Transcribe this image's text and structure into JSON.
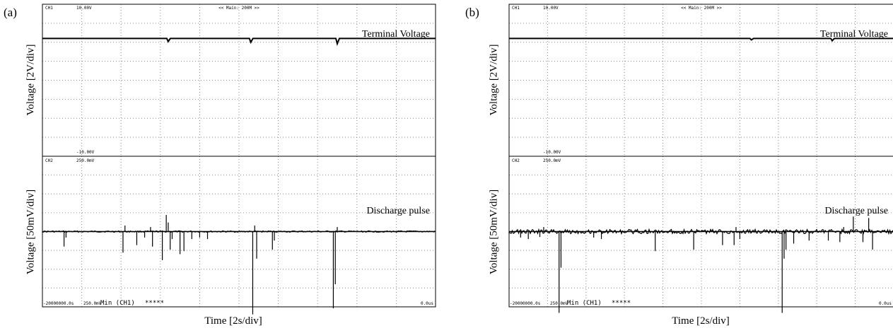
{
  "colors": {
    "frame": "#000000",
    "grid": "#8a8a8a",
    "trace": "#000000",
    "background": "#ffffff"
  },
  "chart_data": [
    {
      "panel_label": "(a)",
      "type": "line",
      "xlabel": "Time [2s/div]",
      "scope": {
        "top_label": "<< Main: 200M >>",
        "bottom_left": "-20000000.0s",
        "bottom_scale": "250.0mV",
        "mode": "Min (CH1)",
        "stars": "*****",
        "bottom_right": "0.0us"
      },
      "channels": [
        {
          "name": "CH1",
          "scale_top": "10.00V",
          "scale_bottom": "-10.00V",
          "ylabel": "Voltage [2V/div]",
          "annotation": "Terminal Voltage",
          "ylim": [
            -10,
            10
          ],
          "baseline": 5.5,
          "events": [
            [
              3.2,
              -0.4
            ],
            [
              5.3,
              -0.5
            ],
            [
              7.5,
              -0.7
            ]
          ]
        },
        {
          "name": "CH2",
          "scale_top": "250.0mV",
          "ylabel": "Voltage [50mV/div]",
          "annotation": "Discharge pulse",
          "ylim": [
            -250,
            250
          ],
          "baseline": 0,
          "noise": "low",
          "events": [
            [
              0.55,
              -50
            ],
            [
              0.6,
              -20
            ],
            [
              2.05,
              -70
            ],
            [
              2.1,
              20
            ],
            [
              2.4,
              -45
            ],
            [
              2.6,
              -20
            ],
            [
              2.8,
              -50
            ],
            [
              2.75,
              15
            ],
            [
              3.05,
              -95
            ],
            [
              3.15,
              55
            ],
            [
              3.2,
              30
            ],
            [
              3.25,
              -60
            ],
            [
              3.3,
              -25
            ],
            [
              3.5,
              -75
            ],
            [
              3.6,
              -65
            ],
            [
              3.8,
              -25
            ],
            [
              4.0,
              -20
            ],
            [
              4.2,
              -25
            ],
            [
              5.35,
              -275
            ],
            [
              5.4,
              20
            ],
            [
              5.45,
              -90
            ],
            [
              5.85,
              -60
            ],
            [
              5.9,
              -30
            ],
            [
              7.4,
              -255
            ],
            [
              7.45,
              -175
            ],
            [
              7.5,
              15
            ]
          ]
        }
      ]
    },
    {
      "panel_label": "(b)",
      "type": "line",
      "xlabel": "Time [2s/div]",
      "scope": {
        "top_label": "<< Main: 200M >>",
        "bottom_left": "-20000000.0s",
        "bottom_scale": "250.0mV",
        "mode": "Min (CH1)",
        "stars": "*****",
        "bottom_right": "0.0us"
      },
      "channels": [
        {
          "name": "CH1",
          "scale_top": "10.00V",
          "scale_bottom": "-10.00V",
          "ylabel": "Voltage [2V/div]",
          "annotation": "Terminal Voltage",
          "ylim": [
            -10,
            10
          ],
          "baseline": 5.5,
          "events": [
            [
              6.3,
              -0.2
            ],
            [
              8.4,
              -0.3
            ]
          ]
        },
        {
          "name": "CH2",
          "scale_top": "250.0mV",
          "ylabel": "Voltage [50mV/div]",
          "annotation": "Discharge pulse",
          "ylim": [
            -250,
            250
          ],
          "baseline": 0,
          "noise": "high",
          "events": [
            [
              0.3,
              -20
            ],
            [
              0.5,
              -25
            ],
            [
              0.8,
              -18
            ],
            [
              0.9,
              15
            ],
            [
              1.3,
              -270
            ],
            [
              1.35,
              -120
            ],
            [
              2.2,
              -20
            ],
            [
              2.4,
              -25
            ],
            [
              3.8,
              -65
            ],
            [
              4.8,
              -60
            ],
            [
              5.55,
              -45
            ],
            [
              5.85,
              -45
            ],
            [
              5.9,
              15
            ],
            [
              6.0,
              -25
            ],
            [
              7.1,
              -270
            ],
            [
              7.15,
              -90
            ],
            [
              7.2,
              -60
            ],
            [
              7.4,
              -40
            ],
            [
              7.8,
              -30
            ],
            [
              8.3,
              -30
            ],
            [
              8.6,
              -35
            ],
            [
              8.7,
              15
            ],
            [
              9.2,
              -35
            ],
            [
              8.95,
              50
            ],
            [
              9.35,
              45
            ],
            [
              9.45,
              -60
            ]
          ]
        }
      ]
    }
  ]
}
